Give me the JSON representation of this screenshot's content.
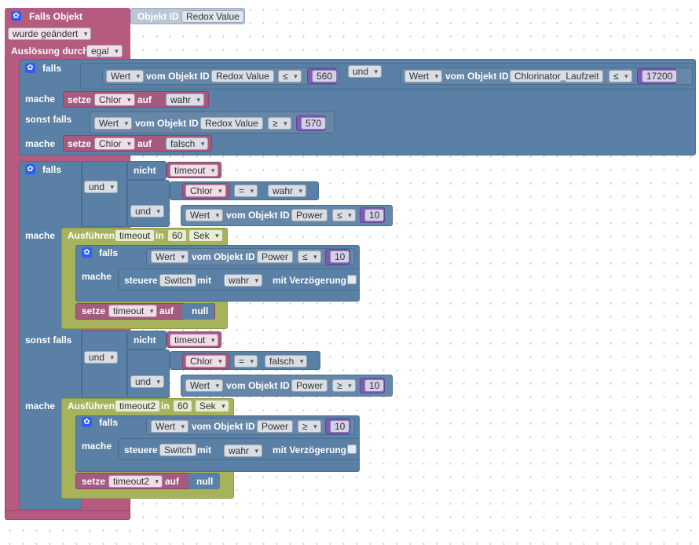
{
  "trigger": {
    "title": "Falls Objekt",
    "object_id_label": "Objekt ID",
    "object_id_value": "Redox Value",
    "changed_option": "wurde geändert",
    "ack_label": "Auslösung durch",
    "ack_option": "egal"
  },
  "words": {
    "falls": "falls",
    "mache": "mache",
    "sonst_falls": "sonst falls",
    "wert": "Wert",
    "vom_objekt_id": "vom Objekt ID",
    "und": "und",
    "setze": "setze",
    "auf": "auf",
    "nicht": "nicht",
    "ausfuehren": "Ausführen",
    "in": "in",
    "sek": "Sek",
    "steuere": "steuere",
    "mit": "mit",
    "mit_verzoegerung": "mit Verzögerung",
    "null": "null",
    "le": "≤",
    "ge": "≥",
    "eq": "="
  },
  "if1": {
    "obj1": "Redox Value",
    "val1": "560",
    "obj2": "Chlorinator_Laufzeit",
    "val2": "17200",
    "set_var": "Chlor",
    "set_val": "wahr",
    "elif_obj": "Redox Value",
    "elif_val": "570",
    "elif_set_var": "Chlor",
    "elif_set_val": "falsch"
  },
  "if2": {
    "a": {
      "not_var": "timeout",
      "eq_var": "Chlor",
      "eq_val": "wahr",
      "obj": "Power",
      "val": "10",
      "timeout_var": "timeout",
      "delay": "60",
      "inner_obj": "Power",
      "inner_val": "10",
      "switch": "Switch",
      "switch_val": "wahr",
      "reset_var": "timeout"
    },
    "b": {
      "not_var": "timeout",
      "eq_var": "Chlor",
      "eq_val": "falsch",
      "obj": "Power",
      "val": "10",
      "timeout_var": "timeout2",
      "delay": "60",
      "inner_obj": "Power",
      "inner_val": "10",
      "switch": "Switch",
      "switch_val": "wahr",
      "reset_var": "timeout2"
    }
  },
  "colors": {
    "event": "#b55b80",
    "logic": "#5b80a5",
    "timeout": "#a6b35b",
    "variable": "#a55b80",
    "number": "#7c5bb0",
    "gear_icon": "#2e5cff"
  },
  "icons": [
    "gear-icon"
  ]
}
